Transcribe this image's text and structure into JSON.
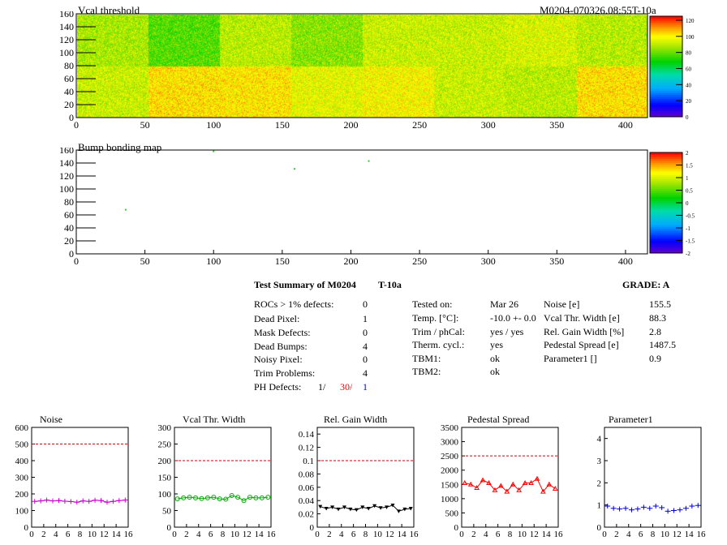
{
  "header": {
    "map1_title": "Vcal threshold",
    "map1_run": "M0204-070326.08:55T-10a",
    "map2_title": "Bump bonding map"
  },
  "summary": {
    "title": "Test Summary of M0204",
    "temp_tag": "T-10a",
    "grade": "GRADE:  A",
    "defects": [
      {
        "label": "ROCs > 1% defects:",
        "value": "0"
      },
      {
        "label": "Dead Pixel:",
        "value": "1"
      },
      {
        "label": "Mask Defects:",
        "value": "0"
      },
      {
        "label": "Dead Bumps:",
        "value": "4"
      },
      {
        "label": "Noisy Pixel:",
        "value": "0"
      },
      {
        "label": "Trim Problems:",
        "value": "4"
      }
    ],
    "ph_defects": {
      "label": "PH Defects:",
      "v1": "1/",
      "v2": "30/",
      "v3": "1"
    },
    "conditions": [
      {
        "label": "Tested on:",
        "value": "Mar 26"
      },
      {
        "label": "Temp. [°C]:",
        "value": "-10.0 +- 0.0"
      },
      {
        "label": "Trim / phCal:",
        "value": "yes / yes"
      },
      {
        "label": "Therm. cycl.:",
        "value": "yes"
      },
      {
        "label": "TBM1:",
        "value": "ok"
      },
      {
        "label": "TBM2:",
        "value": "ok"
      }
    ],
    "params": [
      {
        "label": "Noise [e]",
        "value": "155.5"
      },
      {
        "label": "Vcal Thr. Width [e]",
        "value": "88.3"
      },
      {
        "label": "Rel. Gain Width [%]",
        "value": "2.8"
      },
      {
        "label": "Pedestal Spread [e]",
        "value": "1487.5"
      },
      {
        "label": "Parameter1 []",
        "value": "0.9"
      }
    ]
  },
  "colors": {
    "noise": "#cc00cc",
    "vcal": "#00aa00",
    "gain": "#000000",
    "pedestal": "#ff0000",
    "param1": "#0000cc",
    "limit_line": "#cc0000",
    "ph_v2": "#ff0000",
    "ph_v3": "#0000ff"
  },
  "chart_data": [
    {
      "type": "heatmap",
      "title": "Vcal threshold",
      "xlim": [
        0,
        416
      ],
      "ylim": [
        0,
        160
      ],
      "x_ticks": [
        "0",
        "50",
        "100",
        "150",
        "200",
        "250",
        "300",
        "350",
        "400"
      ],
      "y_ticks": [
        "0",
        "20",
        "40",
        "60",
        "80",
        "100",
        "120",
        "140",
        "160"
      ],
      "z_ticks": [
        "0",
        "20",
        "40",
        "60",
        "80",
        "100",
        "120"
      ],
      "zlim": [
        0,
        125
      ],
      "roc_mean": [
        [
          88,
          78,
          90,
          84,
          92,
          92,
          94,
          90
        ],
        [
          92,
          103,
          102,
          96,
          99,
          92,
          90,
          103
        ]
      ]
    },
    {
      "type": "heatmap",
      "title": "Bump bonding map",
      "xlim": [
        0,
        416
      ],
      "ylim": [
        0,
        160
      ],
      "x_ticks": [
        "0",
        "50",
        "100",
        "150",
        "200",
        "250",
        "300",
        "350",
        "400"
      ],
      "y_ticks": [
        "0",
        "20",
        "40",
        "60",
        "80",
        "100",
        "120",
        "140",
        "160"
      ],
      "z_ticks": [
        "-2",
        "-1.5",
        "-1",
        "-0.5",
        "0",
        "0.5",
        "1",
        "1.5",
        "2"
      ],
      "zlim": [
        -2,
        2
      ],
      "defects": [
        {
          "x": 36,
          "y": 68
        },
        {
          "x": 159,
          "y": 131
        },
        {
          "x": 213,
          "y": 143
        },
        {
          "x": 100,
          "y": 158
        }
      ]
    },
    {
      "type": "scatter",
      "title": "Noise",
      "key": "noise",
      "xlim": [
        0,
        16
      ],
      "ylim": [
        0,
        600
      ],
      "x_ticks": [
        "0",
        "2",
        "4",
        "6",
        "8",
        "10",
        "12",
        "14",
        "16"
      ],
      "y_ticks": [
        "0",
        "100",
        "200",
        "300",
        "400",
        "500",
        "600"
      ],
      "limit": 500,
      "marker": "cross",
      "x": [
        0.5,
        1.5,
        2.5,
        3.5,
        4.5,
        5.5,
        6.5,
        7.5,
        8.5,
        9.5,
        10.5,
        11.5,
        12.5,
        13.5,
        14.5,
        15.5
      ],
      "values": [
        155,
        158,
        163,
        158,
        160,
        156,
        154,
        150,
        158,
        155,
        162,
        160,
        150,
        155,
        160,
        163
      ]
    },
    {
      "type": "scatter",
      "title": "Vcal Thr. Width",
      "key": "vcal",
      "xlim": [
        0,
        16
      ],
      "ylim": [
        0,
        300
      ],
      "x_ticks": [
        "0",
        "2",
        "4",
        "6",
        "8",
        "10",
        "12",
        "14",
        "16"
      ],
      "y_ticks": [
        "0",
        "50",
        "100",
        "150",
        "200",
        "250",
        "300"
      ],
      "limit": 200,
      "marker": "circle",
      "x": [
        0.5,
        1.5,
        2.5,
        3.5,
        4.5,
        5.5,
        6.5,
        7.5,
        8.5,
        9.5,
        10.5,
        11.5,
        12.5,
        13.5,
        14.5,
        15.5
      ],
      "values": [
        85,
        88,
        90,
        88,
        86,
        88,
        90,
        85,
        84,
        95,
        90,
        80,
        90,
        88,
        88,
        90
      ]
    },
    {
      "type": "scatter",
      "title": "Rel. Gain Width",
      "key": "gain",
      "xlim": [
        0,
        16
      ],
      "ylim": [
        0,
        0.15
      ],
      "x_ticks": [
        "0",
        "2",
        "4",
        "6",
        "8",
        "10",
        "12",
        "14",
        "16"
      ],
      "y_ticks": [
        "0",
        "0.02",
        "0.04",
        "0.06",
        "0.08",
        "0.1",
        "0.12",
        "0.14"
      ],
      "limit": 0.1,
      "marker": "triangle-down",
      "x": [
        0.5,
        1.5,
        2.5,
        3.5,
        4.5,
        5.5,
        6.5,
        7.5,
        8.5,
        9.5,
        10.5,
        11.5,
        12.5,
        13.5,
        14.5,
        15.5
      ],
      "values": [
        0.031,
        0.028,
        0.03,
        0.027,
        0.03,
        0.027,
        0.026,
        0.03,
        0.028,
        0.032,
        0.029,
        0.03,
        0.033,
        0.024,
        0.027,
        0.028
      ]
    },
    {
      "type": "scatter",
      "title": "Pedestal Spread",
      "key": "pedestal",
      "xlim": [
        0,
        16
      ],
      "ylim": [
        0,
        3500
      ],
      "x_ticks": [
        "0",
        "2",
        "4",
        "6",
        "8",
        "10",
        "12",
        "14",
        "16"
      ],
      "y_ticks": [
        "0",
        "500",
        "1000",
        "1500",
        "2000",
        "2500",
        "3000",
        "3500"
      ],
      "limit": 2500,
      "marker": "triangle-up",
      "x": [
        0.5,
        1.5,
        2.5,
        3.5,
        4.5,
        5.5,
        6.5,
        7.5,
        8.5,
        9.5,
        10.5,
        11.5,
        12.5,
        13.5,
        14.5,
        15.5
      ],
      "values": [
        1550,
        1500,
        1380,
        1650,
        1550,
        1300,
        1450,
        1250,
        1500,
        1300,
        1550,
        1550,
        1700,
        1250,
        1500,
        1350
      ]
    },
    {
      "type": "scatter",
      "title": "Parameter1",
      "key": "param1",
      "xlim": [
        0,
        16
      ],
      "ylim": [
        0,
        4.5
      ],
      "x_ticks": [
        "0",
        "2",
        "4",
        "6",
        "8",
        "10",
        "12",
        "14",
        "16"
      ],
      "y_ticks": [
        "0",
        "1",
        "2",
        "3",
        "4"
      ],
      "limit": null,
      "marker": "cross",
      "x": [
        0.5,
        1.5,
        2.5,
        3.5,
        4.5,
        5.5,
        6.5,
        7.5,
        8.5,
        9.5,
        10.5,
        11.5,
        12.5,
        13.5,
        14.5,
        15.5
      ],
      "values": [
        0.95,
        0.85,
        0.82,
        0.85,
        0.78,
        0.82,
        0.9,
        0.85,
        0.95,
        0.88,
        0.72,
        0.75,
        0.78,
        0.85,
        0.95,
        0.98
      ]
    }
  ]
}
